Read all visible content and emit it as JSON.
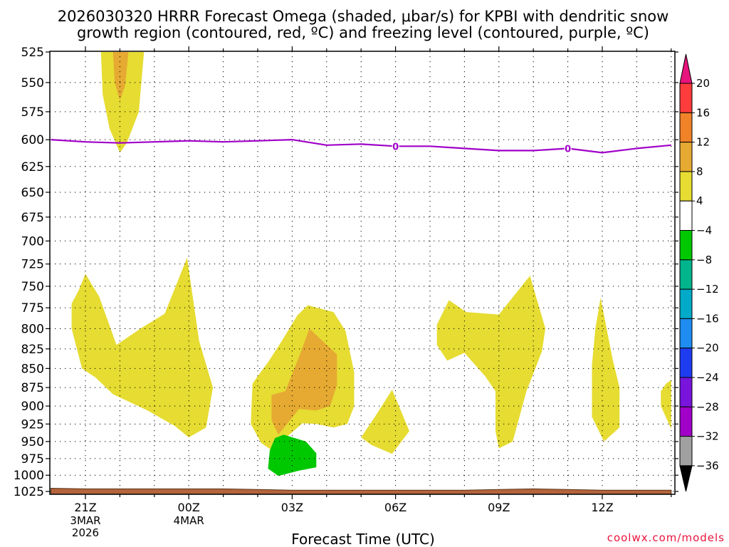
{
  "chart_data": {
    "type": "heatmap",
    "title_lines": [
      "2026030320 HRRR Forecast Omega (shaded, μbar/s) for KPBI with dendritic snow",
      "growth region (contoured, red, ºC) and freezing level (contoured, purple, ºC)"
    ],
    "xlabel": "Forecast Time (UTC)",
    "ylabel": "",
    "pressure_ticks": [
      525,
      550,
      575,
      600,
      625,
      650,
      675,
      700,
      725,
      750,
      775,
      800,
      825,
      850,
      875,
      900,
      925,
      950,
      975,
      1000,
      1025
    ],
    "y_range": [
      525,
      1025
    ],
    "x_range_hours": [
      -1.0,
      17.0
    ],
    "time_ticks": [
      {
        "hour": 0,
        "label": "21Z",
        "date_lines": [
          "3MAR",
          "2026"
        ]
      },
      {
        "hour": 3,
        "label": "00Z",
        "date_lines": [
          "4MAR"
        ]
      },
      {
        "hour": 6,
        "label": "03Z",
        "date_lines": []
      },
      {
        "hour": 9,
        "label": "06Z",
        "date_lines": []
      },
      {
        "hour": 12,
        "label": "09Z",
        "date_lines": []
      },
      {
        "hour": 15,
        "label": "12Z",
        "date_lines": []
      }
    ],
    "colorbar": {
      "labels": [
        "20",
        "16",
        "12",
        "8",
        "4",
        "−4",
        "−8",
        "−12",
        "−16",
        "−20",
        "−24",
        "−28",
        "−32",
        "−36"
      ],
      "colors": [
        "#ff3c3c",
        "#f08228",
        "#e6aa32",
        "#e6dc32",
        "#ffffff",
        "#00c800",
        "#00b48c",
        "#00aac8",
        "#1e8cf0",
        "#1e3cf0",
        "#7814dc",
        "#a000c8",
        "#a0a0a0"
      ],
      "top_arrow_color": "#e6147c",
      "bottom_arrow_color": "#000000"
    },
    "omega_regions": [
      {
        "band": "4 to 8",
        "color": "#e6dc32",
        "points": [
          [
            0.45,
            525
          ],
          [
            1.7,
            525
          ],
          [
            1.55,
            575
          ],
          [
            1.2,
            603
          ],
          [
            1.0,
            612
          ],
          [
            0.7,
            590
          ],
          [
            0.5,
            560
          ]
        ]
      },
      {
        "band": "8 to 12",
        "color": "#e6aa32",
        "points": [
          [
            0.8,
            525
          ],
          [
            1.25,
            525
          ],
          [
            1.15,
            553
          ],
          [
            1.0,
            565
          ],
          [
            0.85,
            550
          ]
        ]
      },
      {
        "band": "4 to 8",
        "color": "#e6dc32",
        "points": [
          [
            0.0,
            736
          ],
          [
            0.4,
            762
          ],
          [
            0.9,
            820
          ],
          [
            1.6,
            800
          ],
          [
            2.3,
            782
          ],
          [
            2.95,
            718
          ],
          [
            3.3,
            815
          ],
          [
            3.7,
            875
          ],
          [
            3.5,
            930
          ],
          [
            3.0,
            944
          ],
          [
            2.6,
            928
          ],
          [
            1.8,
            906
          ],
          [
            0.8,
            884
          ],
          [
            0.3,
            862
          ],
          [
            -0.1,
            850
          ],
          [
            -0.4,
            800
          ],
          [
            -0.4,
            770
          ],
          [
            -0.2,
            755
          ]
        ]
      },
      {
        "band": "4 to 8",
        "color": "#e6dc32",
        "points": [
          [
            5.3,
            842
          ],
          [
            5.7,
            815
          ],
          [
            6.15,
            784
          ],
          [
            6.45,
            772
          ],
          [
            7.2,
            780
          ],
          [
            7.55,
            803
          ],
          [
            7.8,
            855
          ],
          [
            7.8,
            900
          ],
          [
            7.6,
            925
          ],
          [
            7.2,
            930
          ],
          [
            6.7,
            925
          ],
          [
            6.3,
            924
          ],
          [
            5.8,
            945
          ],
          [
            5.5,
            966
          ],
          [
            5.1,
            952
          ],
          [
            4.8,
            925
          ],
          [
            4.85,
            870
          ],
          [
            5.0,
            860
          ]
        ]
      },
      {
        "band": "8 to 12",
        "color": "#e6aa32",
        "points": [
          [
            5.8,
            880
          ],
          [
            6.2,
            835
          ],
          [
            6.5,
            800
          ],
          [
            7.3,
            832
          ],
          [
            7.3,
            872
          ],
          [
            7.1,
            900
          ],
          [
            6.7,
            906
          ],
          [
            6.2,
            904
          ],
          [
            5.85,
            925
          ],
          [
            5.6,
            940
          ],
          [
            5.4,
            920
          ],
          [
            5.4,
            885
          ]
        ]
      },
      {
        "band": "-8 to -4",
        "color": "#00c800",
        "points": [
          [
            5.75,
            940
          ],
          [
            6.4,
            950
          ],
          [
            6.7,
            967
          ],
          [
            6.7,
            988
          ],
          [
            6.2,
            993
          ],
          [
            5.6,
            1001
          ],
          [
            5.3,
            990
          ],
          [
            5.35,
            963
          ],
          [
            5.5,
            945
          ]
        ]
      },
      {
        "band": "4 to 8",
        "color": "#e6dc32",
        "points": [
          [
            8.9,
            878
          ],
          [
            9.4,
            935
          ],
          [
            8.9,
            968
          ],
          [
            8.3,
            955
          ],
          [
            8.0,
            944
          ],
          [
            8.4,
            915
          ]
        ]
      },
      {
        "band": "4 to 8",
        "color": "#e6dc32",
        "points": [
          [
            10.2,
            795
          ],
          [
            10.55,
            766
          ],
          [
            11.05,
            780
          ],
          [
            12.0,
            783
          ],
          [
            12.9,
            738
          ],
          [
            13.35,
            800
          ],
          [
            13.25,
            828
          ],
          [
            12.8,
            880
          ],
          [
            12.4,
            950
          ],
          [
            12.0,
            960
          ],
          [
            11.9,
            935
          ],
          [
            11.9,
            880
          ],
          [
            11.6,
            860
          ],
          [
            11.0,
            830
          ],
          [
            10.5,
            840
          ],
          [
            10.2,
            820
          ]
        ]
      },
      {
        "band": "4 to 8",
        "color": "#e6dc32",
        "points": [
          [
            14.95,
            763
          ],
          [
            15.3,
            838
          ],
          [
            15.5,
            875
          ],
          [
            15.5,
            930
          ],
          [
            15.05,
            950
          ],
          [
            14.7,
            915
          ],
          [
            14.7,
            845
          ],
          [
            14.8,
            800
          ]
        ]
      },
      {
        "band": "4 to 8",
        "color": "#e6dc32",
        "points": [
          [
            17.0,
            865
          ],
          [
            17.0,
            932
          ],
          [
            16.7,
            900
          ],
          [
            16.7,
            880
          ],
          [
            16.85,
            870
          ]
        ]
      }
    ],
    "freezing_level": {
      "color": "#a000c8",
      "label": "0",
      "label_hours": [
        9.0,
        14.0
      ],
      "points": [
        [
          -1.0,
          600
        ],
        [
          0.0,
          602
        ],
        [
          1.0,
          603
        ],
        [
          2.0,
          602
        ],
        [
          3.0,
          601
        ],
        [
          4.0,
          602
        ],
        [
          5.0,
          601
        ],
        [
          6.0,
          600
        ],
        [
          7.0,
          605
        ],
        [
          8.0,
          604
        ],
        [
          9.0,
          606
        ],
        [
          10.0,
          606
        ],
        [
          11.0,
          608
        ],
        [
          12.0,
          610
        ],
        [
          13.0,
          610
        ],
        [
          14.0,
          608
        ],
        [
          15.0,
          612
        ],
        [
          16.0,
          608
        ],
        [
          17.0,
          605
        ]
      ]
    },
    "terrain": {
      "color": "#b4643c",
      "points": [
        [
          -1.0,
          1020
        ],
        [
          0.0,
          1021
        ],
        [
          1.0,
          1021
        ],
        [
          2.0,
          1021
        ],
        [
          3.0,
          1021
        ],
        [
          4.0,
          1021
        ],
        [
          5.0,
          1022
        ],
        [
          6.0,
          1023
        ],
        [
          7.0,
          1023
        ],
        [
          8.0,
          1023
        ],
        [
          9.0,
          1023
        ],
        [
          10.0,
          1023
        ],
        [
          11.0,
          1023
        ],
        [
          12.0,
          1022
        ],
        [
          13.0,
          1021
        ],
        [
          14.0,
          1022
        ],
        [
          15.0,
          1023
        ],
        [
          16.0,
          1023
        ],
        [
          17.0,
          1023
        ]
      ]
    }
  },
  "credit": "coolwx.com/models"
}
